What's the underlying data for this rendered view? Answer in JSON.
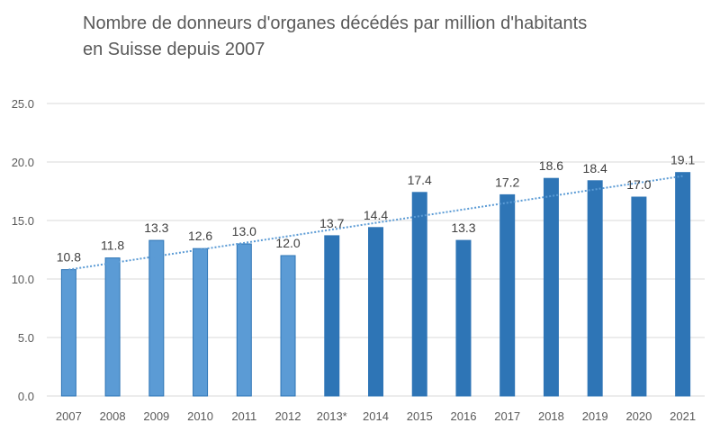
{
  "chart_data": {
    "type": "bar",
    "title_lines": [
      "Nombre de donneurs d'organes décédés par million d'habitants",
      "en Suisse depuis 2007"
    ],
    "categories": [
      "2007",
      "2008",
      "2009",
      "2010",
      "2011",
      "2012",
      "2013*",
      "2014",
      "2015",
      "2016",
      "2017",
      "2018",
      "2019",
      "2020",
      "2021"
    ],
    "values": [
      10.8,
      11.8,
      13.3,
      12.6,
      13.0,
      12.0,
      13.7,
      14.4,
      17.4,
      13.3,
      17.2,
      18.6,
      18.4,
      17.0,
      19.1
    ],
    "data_labels": [
      "10.8",
      "11.8",
      "13.3",
      "12.6",
      "13.0",
      "12.0",
      "13.7",
      "14.4",
      "17.4",
      "13.3",
      "17.2",
      "18.6",
      "18.4",
      "17.0",
      "19.1"
    ],
    "bar_colors": [
      "#5b9bd5",
      "#5b9bd5",
      "#5b9bd5",
      "#5b9bd5",
      "#5b9bd5",
      "#5b9bd5",
      "#2e75b6",
      "#2e75b6",
      "#2e75b6",
      "#2e75b6",
      "#2e75b6",
      "#2e75b6",
      "#2e75b6",
      "#2e75b6",
      "#2e75b6"
    ],
    "y_ticks": [
      "0.0",
      "5.0",
      "10.0",
      "15.0",
      "20.0",
      "25.0"
    ],
    "ylim": [
      0,
      25
    ],
    "xlabel": "",
    "ylabel": "",
    "grid": true,
    "legend": "none",
    "trendline": {
      "type": "linear",
      "style": "dotted",
      "color": "#5b9bd5",
      "start": 10.8,
      "end": 18.8
    }
  }
}
